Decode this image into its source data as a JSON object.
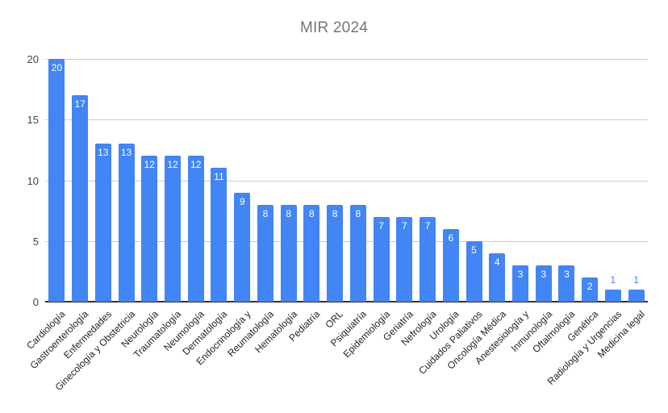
{
  "chart_data": {
    "type": "bar",
    "title": "MIR 2024",
    "categories": [
      "Cardiología",
      "Gastroenterología",
      "Enfermedades",
      "Ginecología y Obstetricia",
      "Neurología",
      "Traumatología",
      "Neumología",
      "Dermatología",
      "Endocrinología y",
      "Reumatología",
      "Hematología",
      "Pediatría",
      "ORL",
      "Psiquiatría",
      "Epidemiología",
      "Geriatría",
      "Nefrología",
      "Urología",
      "Cuidados Paliativos",
      "Oncología Médica",
      "Anestesiología y",
      "Inmunología",
      "Oftalmología",
      "Genética",
      "Radiología y Urgencias",
      "Medicina legal"
    ],
    "values": [
      20,
      17,
      13,
      13,
      12,
      12,
      12,
      11,
      9,
      8,
      8,
      8,
      8,
      8,
      7,
      7,
      7,
      6,
      5,
      4,
      3,
      3,
      3,
      2,
      1,
      1
    ],
    "xlabel": "",
    "ylabel": "",
    "ylim": [
      0,
      20
    ],
    "yticks": [
      0,
      5,
      10,
      15,
      20
    ],
    "grid": true,
    "legend_position": "none"
  },
  "colors": {
    "bar": "#4285F4",
    "value_label_inside": "#ffffff",
    "value_label_above": "#4285F4",
    "gridline": "#cccccc",
    "baseline": "#333333",
    "axis_text": "#444444",
    "category_text": "#222222",
    "title_text": "#757575",
    "background": "#ffffff"
  }
}
